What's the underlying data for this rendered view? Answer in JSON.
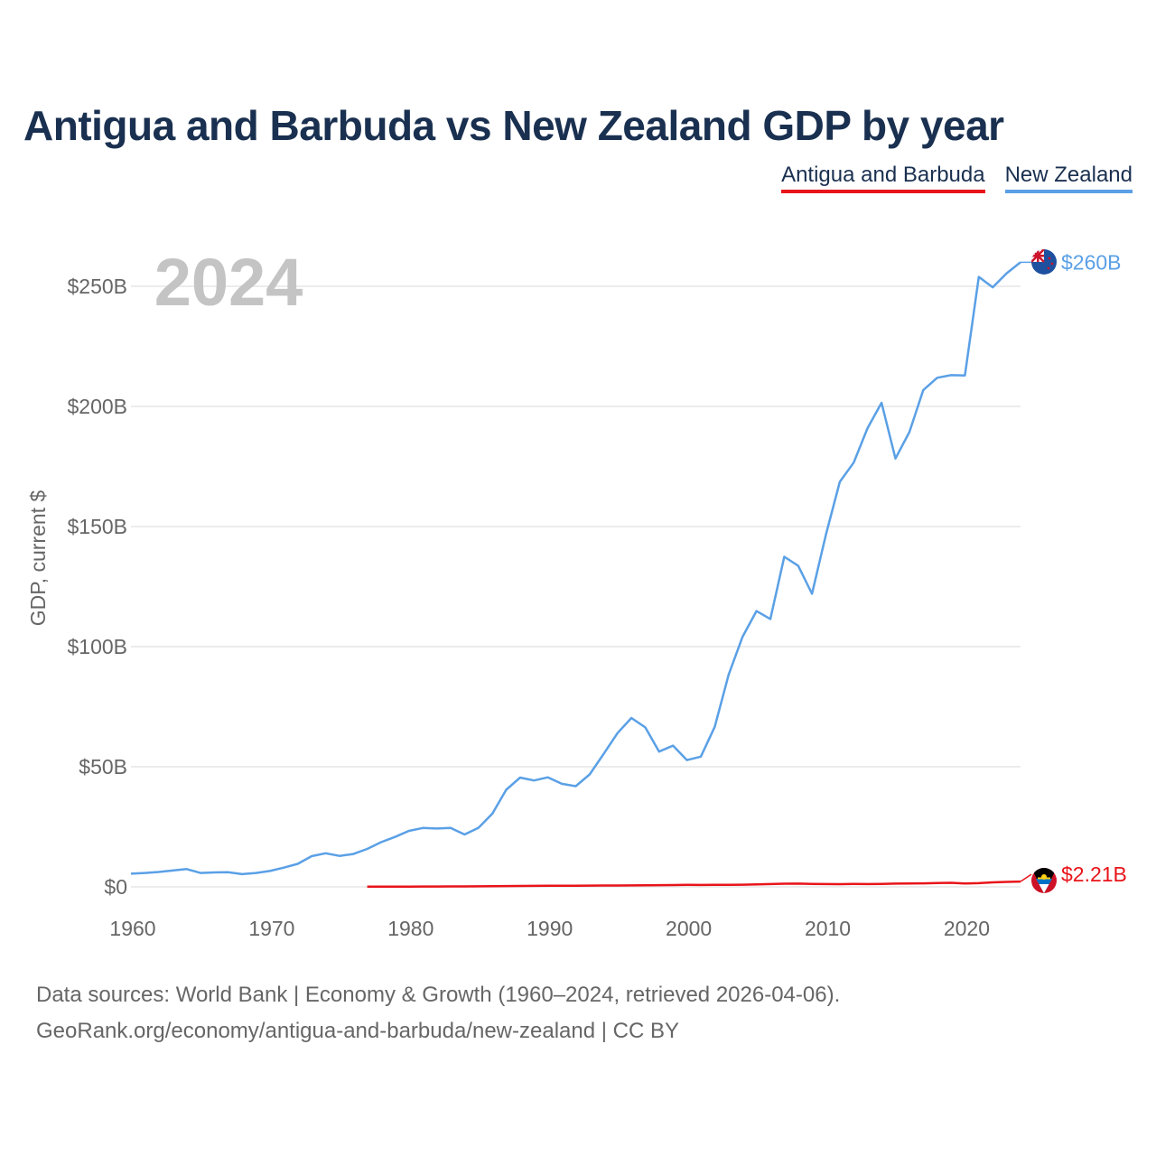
{
  "title": "Antigua and Barbuda vs New Zealand GDP by year",
  "legend": [
    {
      "label": "Antigua and Barbuda",
      "color": "#e8141a"
    },
    {
      "label": "New Zealand",
      "color": "#5aa0e6"
    }
  ],
  "footer": {
    "line1": "Data sources: World Bank | Economy & Growth (1960–2024, retrieved 2026-04-06).",
    "line2": "GeoRank.org/economy/antigua-and-barbuda/new-zealand | CC BY"
  },
  "chart_data": {
    "type": "line",
    "year_label": "2024",
    "ylabel": "GDP, current $",
    "xlim": [
      1960,
      2024
    ],
    "ylim": [
      0,
      270
    ],
    "x_ticks": [
      1960,
      1970,
      1980,
      1990,
      2000,
      2010,
      2020
    ],
    "x_tick_labels": [
      "1960",
      "1970",
      "1980",
      "1990",
      "2000",
      "2010",
      "2020"
    ],
    "y_ticks": [
      0,
      50,
      100,
      150,
      200,
      250
    ],
    "y_tick_labels": [
      "$0",
      "$50B",
      "$100B",
      "$150B",
      "$200B",
      "$250B"
    ],
    "series": [
      {
        "name": "New Zealand",
        "color": "#5aa0e6",
        "end_label": "$260B",
        "x": [
          1960,
          1961,
          1962,
          1963,
          1964,
          1965,
          1966,
          1967,
          1968,
          1969,
          1970,
          1971,
          1972,
          1973,
          1974,
          1975,
          1976,
          1977,
          1978,
          1979,
          1980,
          1981,
          1982,
          1983,
          1984,
          1985,
          1986,
          1987,
          1988,
          1989,
          1990,
          1991,
          1992,
          1993,
          1994,
          1995,
          1996,
          1997,
          1998,
          1999,
          2000,
          2001,
          2002,
          2003,
          2004,
          2005,
          2006,
          2007,
          2008,
          2009,
          2010,
          2011,
          2012,
          2013,
          2014,
          2015,
          2016,
          2017,
          2018,
          2019,
          2020,
          2021,
          2022,
          2023,
          2024
        ],
        "values": [
          5.5,
          5.8,
          6.2,
          6.8,
          7.4,
          5.8,
          6.0,
          6.1,
          5.3,
          5.8,
          6.6,
          8.0,
          9.6,
          12.8,
          14.0,
          12.9,
          13.7,
          15.8,
          18.6,
          20.8,
          23.3,
          24.5,
          24.3,
          24.5,
          21.8,
          24.6,
          30.5,
          40.4,
          45.5,
          44.3,
          45.6,
          42.9,
          41.9,
          46.8,
          55.3,
          64.0,
          70.3,
          66.4,
          56.3,
          58.8,
          52.8,
          54.2,
          66.6,
          88.3,
          104.1,
          114.8,
          111.5,
          137.4,
          133.7,
          122.0,
          146.6,
          168.6,
          176.6,
          191.0,
          201.5,
          178.3,
          189.3,
          206.8,
          211.9,
          213.0,
          212.9,
          253.9,
          249.6,
          255.4,
          260.0
        ]
      },
      {
        "name": "Antigua and Barbuda",
        "color": "#e8141a",
        "end_label": "$2.21B",
        "x": [
          1977,
          1978,
          1979,
          1980,
          1981,
          1982,
          1983,
          1984,
          1985,
          1986,
          1987,
          1988,
          1989,
          1990,
          1991,
          1992,
          1993,
          1994,
          1995,
          1996,
          1997,
          1998,
          1999,
          2000,
          2001,
          2002,
          2003,
          2004,
          2005,
          2006,
          2007,
          2008,
          2009,
          2010,
          2011,
          2012,
          2013,
          2014,
          2015,
          2016,
          2017,
          2018,
          2019,
          2020,
          2021,
          2022,
          2023,
          2024
        ],
        "values": [
          0.08,
          0.09,
          0.11,
          0.13,
          0.15,
          0.16,
          0.18,
          0.2,
          0.24,
          0.29,
          0.34,
          0.38,
          0.42,
          0.46,
          0.48,
          0.5,
          0.53,
          0.58,
          0.58,
          0.62,
          0.68,
          0.72,
          0.77,
          0.83,
          0.8,
          0.81,
          0.85,
          0.92,
          1.02,
          1.16,
          1.33,
          1.36,
          1.24,
          1.15,
          1.14,
          1.2,
          1.18,
          1.25,
          1.34,
          1.44,
          1.47,
          1.6,
          1.69,
          1.41,
          1.56,
          1.87,
          2.05,
          2.21
        ]
      }
    ]
  }
}
